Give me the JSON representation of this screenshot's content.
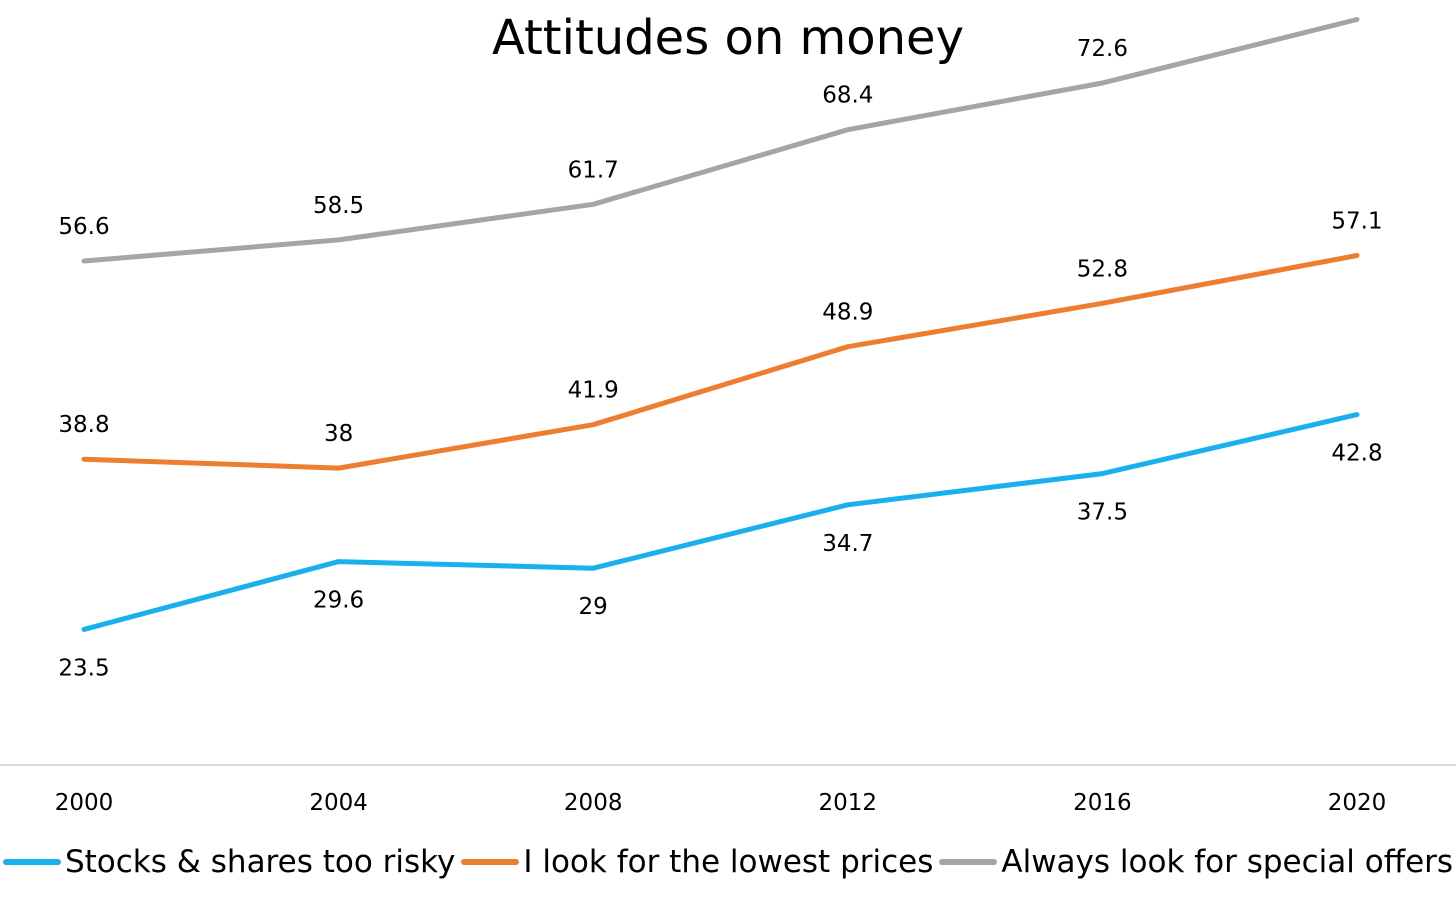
{
  "chart_data": {
    "type": "line",
    "title": "Attitudes on money",
    "xlabel": "",
    "ylabel": "",
    "categories": [
      "2000",
      "2004",
      "2008",
      "2012",
      "2016",
      "2020"
    ],
    "ylim": [
      0,
      100
    ],
    "grid": false,
    "legend_position": "bottom",
    "series": [
      {
        "name": "Stocks & shares too risky",
        "color": "#1ab0ec",
        "values": [
          23.5,
          29.6,
          29,
          34.7,
          37.5,
          42.8
        ],
        "label_position": "below"
      },
      {
        "name": "I look for the lowest prices",
        "color": "#ed7d31",
        "values": [
          38.8,
          38,
          41.9,
          48.9,
          52.8,
          57.1
        ],
        "label_position": "above"
      },
      {
        "name": "Always look for special offers",
        "color": "#a5a5a5",
        "values": [
          56.6,
          58.5,
          61.7,
          68.4,
          72.6,
          78.3
        ],
        "label_position": "above"
      }
    ]
  }
}
